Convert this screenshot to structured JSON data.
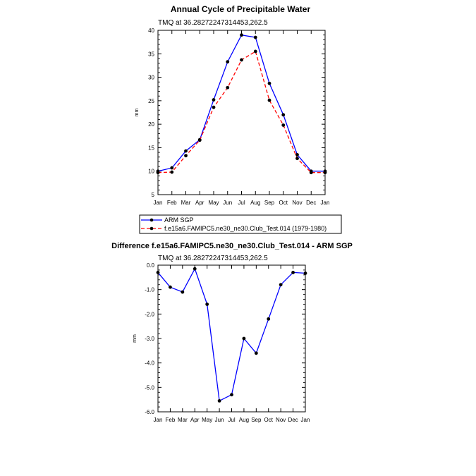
{
  "chart_data": [
    {
      "type": "line",
      "title": "Annual Cycle of Precipitable Water",
      "subtitle": "TMQ at 36.28272247314453,262.5",
      "xlabel": "",
      "ylabel": "mm",
      "categories": [
        "Jan",
        "Feb",
        "Mar",
        "Apr",
        "May",
        "Jun",
        "Jul",
        "Aug",
        "Sep",
        "Oct",
        "Nov",
        "Dec",
        "Jan"
      ],
      "ylim": [
        5,
        40
      ],
      "yticks": [
        "5",
        "10",
        "15",
        "20",
        "25",
        "30",
        "35",
        "40"
      ],
      "grid": false,
      "series": [
        {
          "name": "ARM SGP",
          "color": "#0000ff",
          "dash": "solid",
          "values": [
            10.0,
            10.7,
            14.3,
            16.7,
            25.2,
            33.3,
            39.0,
            38.5,
            28.7,
            22.0,
            13.5,
            10.0,
            10.0
          ]
        },
        {
          "name": "f.e15a6.FAMIPC5.ne30_ne30.Club_Test.014 (1979-1980)",
          "color": "#ff0000",
          "dash": "dashed",
          "values": [
            9.7,
            9.8,
            13.3,
            16.6,
            23.6,
            27.8,
            33.7,
            35.5,
            25.1,
            19.8,
            12.7,
            9.7,
            9.7
          ]
        }
      ]
    },
    {
      "type": "line",
      "title": "Difference f.e15a6.FAMIPC5.ne30_ne30.Club_Test.014 - ARM SGP",
      "subtitle": "TMQ at 36.28272247314453,262.5",
      "xlabel": "",
      "ylabel": "mm",
      "categories": [
        "Jan",
        "Feb",
        "Mar",
        "Apr",
        "May",
        "Jun",
        "Jul",
        "Aug",
        "Sep",
        "Oct",
        "Nov",
        "Dec",
        "Jan"
      ],
      "ylim": [
        -6,
        0
      ],
      "yticks": [
        "0.0",
        "-1.0",
        "-2.0",
        "-3.0",
        "-4.0",
        "-5.0",
        "-6.0"
      ],
      "grid": false,
      "series": [
        {
          "name": "Difference",
          "color": "#0000ff",
          "dash": "solid",
          "values": [
            -0.3,
            -0.9,
            -1.1,
            -0.15,
            -1.6,
            -5.55,
            -5.3,
            -3.0,
            -3.6,
            -2.2,
            -0.8,
            -0.3,
            -0.33
          ]
        }
      ]
    }
  ]
}
